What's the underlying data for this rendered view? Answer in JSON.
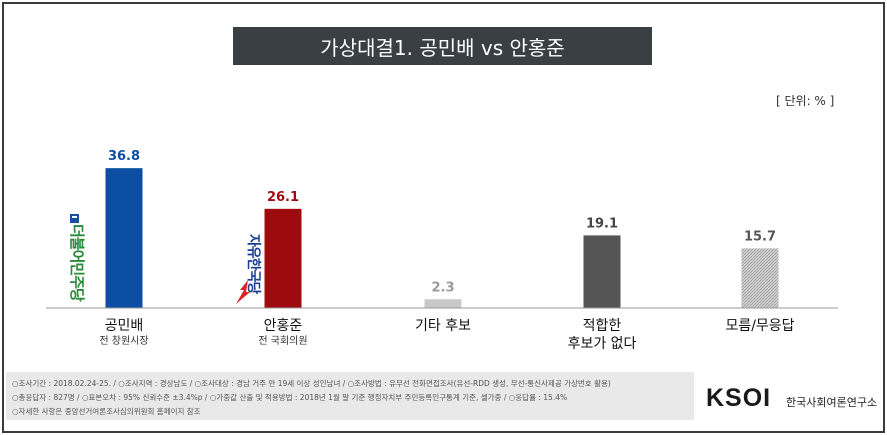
{
  "title": "가상대결1. 공민배 vs 안홍준",
  "unit": "[ 단위: % ]",
  "chart_data": {
    "type": "bar",
    "categories": [
      "공민배",
      "안홍준",
      "기타 후보",
      "적합한 후보가 없다",
      "모름/무응답"
    ],
    "category_lines": [
      [
        "공민배"
      ],
      [
        "안홍준"
      ],
      [
        "기타 후보"
      ],
      [
        "적합한",
        "후보가 없다"
      ],
      [
        "모름/무응답"
      ]
    ],
    "subtitles": [
      "전 창원시장",
      "전 국회의원",
      "",
      "",
      ""
    ],
    "values": [
      36.8,
      26.1,
      2.3,
      19.1,
      15.7
    ],
    "value_labels": [
      "36.8",
      "26.1",
      "2.3",
      "19.1",
      "15.7"
    ],
    "colors": [
      "#0b4ea2",
      "#9e0b0f",
      "#c8c8c8",
      "#555555",
      "#bdbdbd"
    ],
    "label_colors": [
      "#0b4ea2",
      "#9e0b0f",
      "#9a9a9a",
      "#444444",
      "#555555"
    ],
    "patterns": [
      "solid",
      "solid",
      "solid",
      "solid",
      "hatched"
    ],
    "ylim": [
      0,
      40
    ]
  },
  "party_logos": {
    "democratic": {
      "text": "더불어민주당",
      "color": "#1a4fa0",
      "icon": "democratic-party-logo-icon"
    },
    "liberty_korea": {
      "text": "자유한국당",
      "color": "#1c3f94",
      "icon": "liberty-korea-party-logo-icon"
    }
  },
  "footer": {
    "line1": "○조사기간 : 2018.02.24-25.  /  ○조사지역 : 경상남도 /  ○조사대상 : 경남 거주 만 19세 이상 성인남녀  /  ○조사방법 : 유무선 전화면접조사(유선-RDD 생성, 무선-통신사제공 가상번호 활용)",
    "line2": "○총응답자 : 827명  /  ○표본오차 : 95%  신뢰수준 ±3.4%p /  ○가중값 산출 및 적용방법 : 2018년  1월  말 기준  행정자치부  주민등록인구통계 기준, 셀가중 / ○응답률 : 15.4%",
    "line3": "○자세한 사항은 중앙선거여론조사심의위원회 홈페이지 참조"
  },
  "logo": {
    "brand": "KSOI",
    "name": "한국사회여론연구소"
  }
}
